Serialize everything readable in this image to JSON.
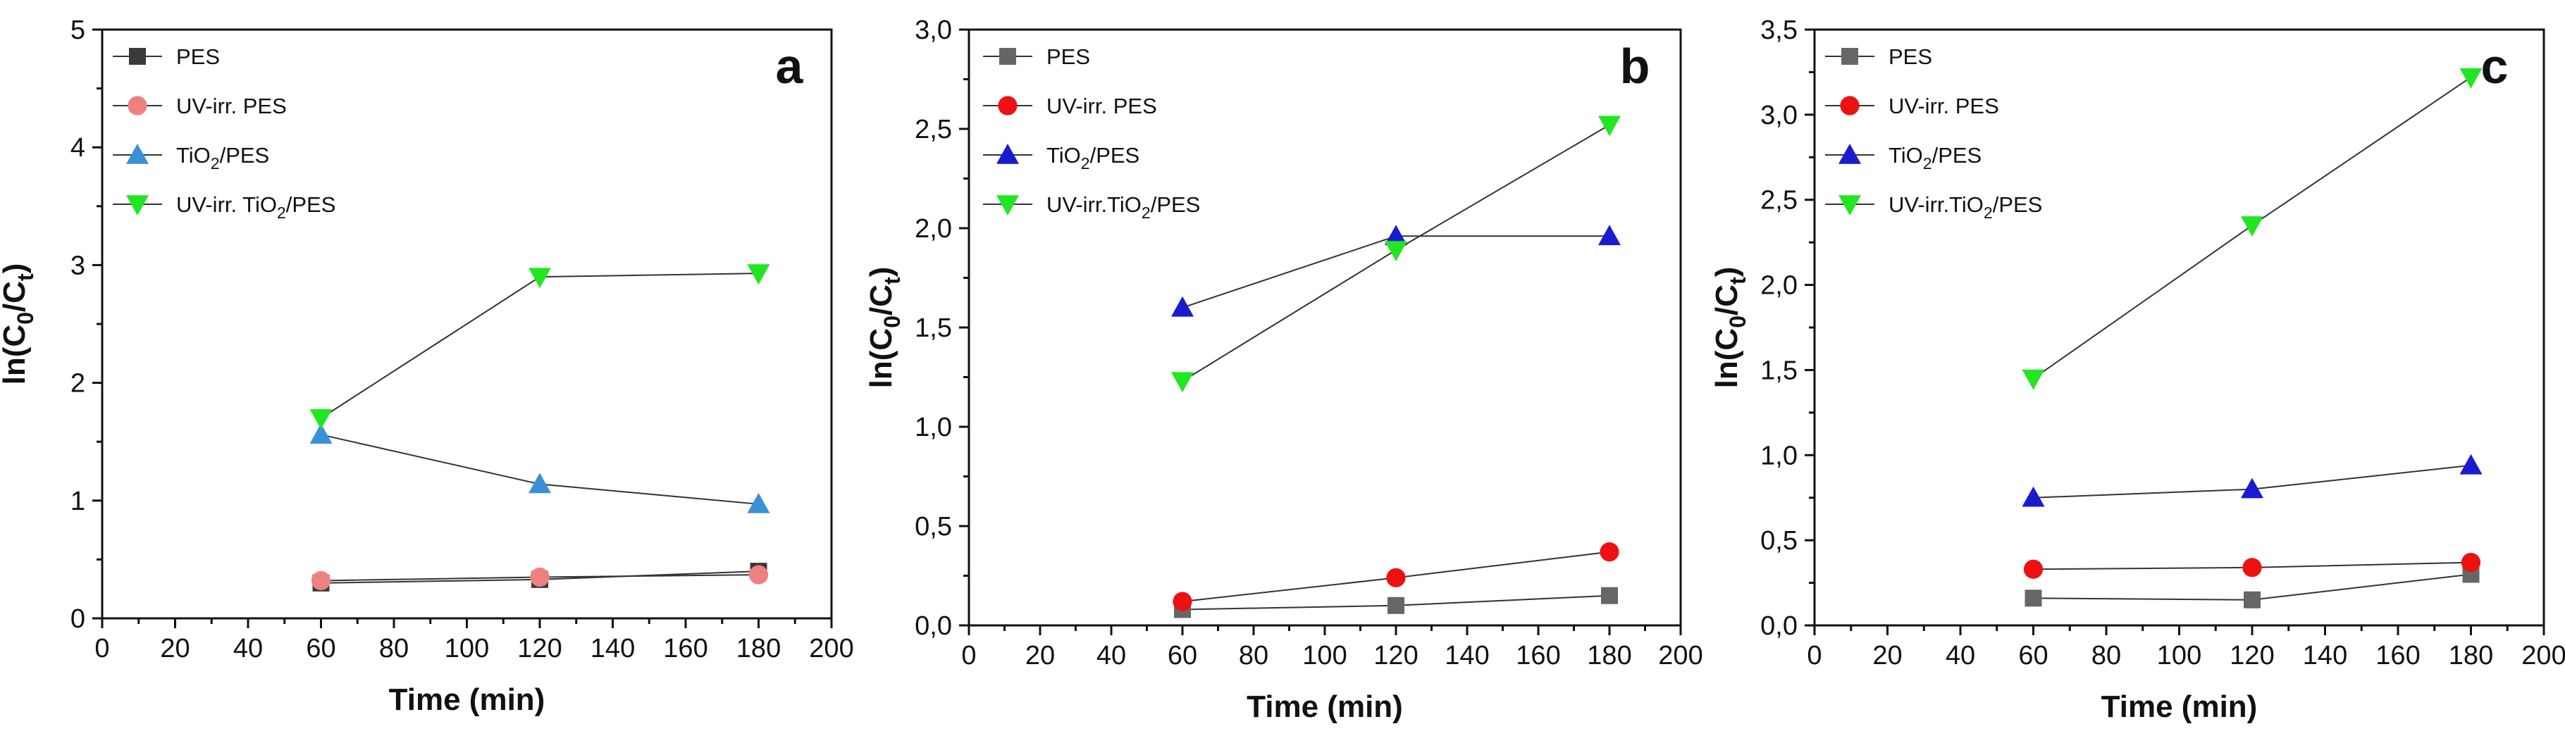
{
  "chart_data": [
    {
      "type": "line",
      "panel": "a",
      "xlabel": "Time (min)",
      "ylabel": "ln(C0/Ct)",
      "xlim": [
        0,
        200
      ],
      "ylim": [
        0,
        5
      ],
      "xticks": [
        0,
        20,
        40,
        60,
        80,
        100,
        120,
        140,
        160,
        180,
        200
      ],
      "yticks": [
        0,
        1,
        2,
        3,
        4,
        5
      ],
      "ytick_labels": [
        "0",
        "1",
        "2",
        "3",
        "4",
        "5"
      ],
      "legend_position": "top-left",
      "x": [
        60,
        120,
        180
      ],
      "series": [
        {
          "name": "PES",
          "label_main": "PES",
          "label_sub": "",
          "label_tail": "",
          "marker": "square",
          "color": "#3a3a3a",
          "values": [
            0.3,
            0.33,
            0.4
          ]
        },
        {
          "name": "UV-irr. PES",
          "label_main": "UV-irr. PES",
          "label_sub": "",
          "label_tail": "",
          "marker": "circle",
          "color": "#f08080",
          "values": [
            0.32,
            0.35,
            0.37
          ]
        },
        {
          "name": "TiO2/PES",
          "label_main": "TiO",
          "label_sub": "2",
          "label_tail": "/PES",
          "marker": "triangle-up",
          "color": "#3b8fd6",
          "values": [
            1.56,
            1.14,
            0.97
          ]
        },
        {
          "name": "UV-irr. TiO2/PES",
          "label_main": "UV-irr. TiO",
          "label_sub": "2",
          "label_tail": "/PES",
          "marker": "triangle-down",
          "color": "#22e622",
          "values": [
            1.7,
            2.9,
            2.93
          ]
        }
      ]
    },
    {
      "type": "line",
      "panel": "b",
      "xlabel": "Time (min)",
      "ylabel": "ln(C0/Ct)",
      "xlim": [
        0,
        200
      ],
      "ylim": [
        0,
        3
      ],
      "xticks": [
        0,
        20,
        40,
        60,
        80,
        100,
        120,
        140,
        160,
        180,
        200
      ],
      "yticks": [
        0,
        0.5,
        1,
        1.5,
        2,
        2.5,
        3
      ],
      "ytick_labels": [
        "0,0",
        "0,5",
        "1,0",
        "1,5",
        "2,0",
        "2,5",
        "3,0"
      ],
      "legend_position": "top-left",
      "x": [
        60,
        120,
        180
      ],
      "series": [
        {
          "name": "PES",
          "label_main": "PES",
          "label_sub": "",
          "label_tail": "",
          "marker": "square",
          "color": "#666666",
          "values": [
            0.08,
            0.1,
            0.15
          ]
        },
        {
          "name": "UV-irr. PES",
          "label_main": "UV-irr. PES",
          "label_sub": "",
          "label_tail": "",
          "marker": "circle",
          "color": "#ee1111",
          "values": [
            0.12,
            0.24,
            0.37
          ]
        },
        {
          "name": "TiO2/PES",
          "label_main": "TiO",
          "label_sub": "2",
          "label_tail": "/PES",
          "marker": "triangle-up",
          "color": "#1a1ad0",
          "values": [
            1.6,
            1.96,
            1.96
          ]
        },
        {
          "name": "UV-irr.TiO2/PES",
          "label_main": "UV-irr.TiO",
          "label_sub": "2",
          "label_tail": "/PES",
          "marker": "triangle-down",
          "color": "#22e622",
          "values": [
            1.23,
            1.89,
            2.52
          ]
        }
      ]
    },
    {
      "type": "line",
      "panel": "c",
      "xlabel": "Time (min)",
      "ylabel": "ln(C0/Ct)",
      "xlim": [
        0,
        200
      ],
      "ylim": [
        0,
        3.5
      ],
      "xticks": [
        0,
        20,
        40,
        60,
        80,
        100,
        120,
        140,
        160,
        180,
        200
      ],
      "yticks": [
        0,
        0.5,
        1,
        1.5,
        2,
        2.5,
        3,
        3.5
      ],
      "ytick_labels": [
        "0,0",
        "0,5",
        "1,0",
        "1,5",
        "2,0",
        "2,5",
        "3,0",
        "3,5"
      ],
      "legend_position": "top-left",
      "x": [
        60,
        120,
        180
      ],
      "series": [
        {
          "name": "PES",
          "label_main": "PES",
          "label_sub": "",
          "label_tail": "",
          "marker": "square",
          "color": "#666666",
          "values": [
            0.16,
            0.15,
            0.3
          ]
        },
        {
          "name": "UV-irr. PES",
          "label_main": "UV-irr. PES",
          "label_sub": "",
          "label_tail": "",
          "marker": "circle",
          "color": "#ee1111",
          "values": [
            0.33,
            0.34,
            0.37
          ]
        },
        {
          "name": "TiO2/PES",
          "label_main": "TiO",
          "label_sub": "2",
          "label_tail": "/PES",
          "marker": "triangle-up",
          "color": "#1a1ad0",
          "values": [
            0.75,
            0.8,
            0.94
          ]
        },
        {
          "name": "UV-irr.TiO2/PES",
          "label_main": "UV-irr.TiO",
          "label_sub": "2",
          "label_tail": "/PES",
          "marker": "triangle-down",
          "color": "#22e622",
          "values": [
            1.45,
            2.35,
            3.22
          ]
        }
      ]
    }
  ]
}
